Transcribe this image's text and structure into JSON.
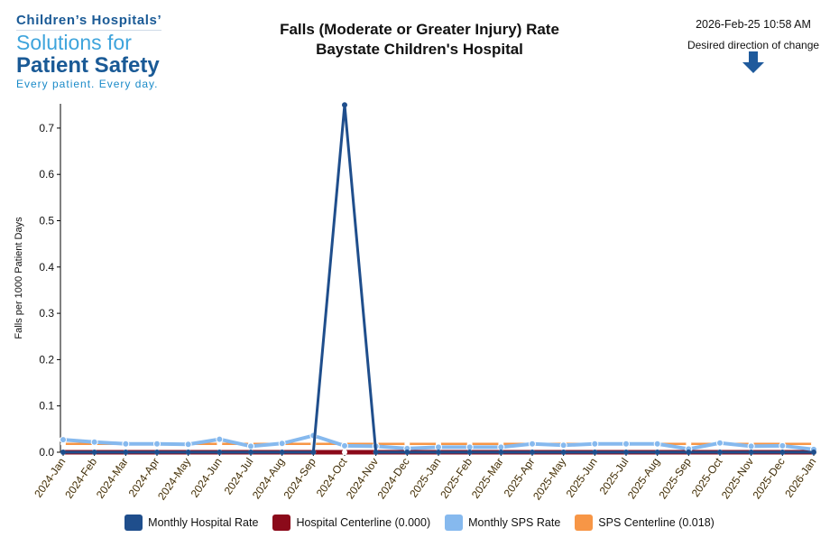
{
  "logo": {
    "line1": "Children’s Hospitals’",
    "line2": "Solutions for",
    "line3": "Patient Safety",
    "line4": "Every patient. Every day."
  },
  "header": {
    "timestamp": "2026-Feb-25 10:58 AM",
    "direction_label": "Desired direction of change",
    "direction_icon": "down-arrow-icon"
  },
  "chart_data": {
    "type": "line",
    "title": "Falls (Moderate or Greater Injury) Rate",
    "subtitle": "Baystate Children's Hospital",
    "xlabel": "",
    "ylabel": "Falls per 1000 Patient Days",
    "ylim": [
      0,
      0.75
    ],
    "yticks": [
      "0.0",
      "0.1",
      "0.2",
      "0.3",
      "0.4",
      "0.5",
      "0.6",
      "0.7"
    ],
    "categories": [
      "2024-Jan",
      "2024-Feb",
      "2024-Mar",
      "2024-Apr",
      "2024-May",
      "2024-Jun",
      "2024-Jul",
      "2024-Aug",
      "2024-Sep",
      "2024-Oct",
      "2024-Nov",
      "2024-Dec",
      "2025-Jan",
      "2025-Feb",
      "2025-Mar",
      "2025-Apr",
      "2025-May",
      "2025-Jun",
      "2025-Jul",
      "2025-Aug",
      "2025-Sep",
      "2025-Oct",
      "2025-Nov",
      "2025-Dec",
      "2026-Jan"
    ],
    "series": [
      {
        "name": "Monthly Hospital Rate",
        "color": "#1f4e8c",
        "values": [
          0,
          0,
          0,
          0,
          0,
          0,
          0,
          0,
          0,
          0.75,
          0,
          0,
          0,
          0,
          0,
          0,
          0,
          0,
          0,
          0,
          0,
          0,
          0,
          0,
          0
        ]
      },
      {
        "name": "Hospital Centerline (0.000)",
        "color": "#8b0a1a",
        "values": [
          0,
          0,
          0,
          0,
          0,
          0,
          0,
          0,
          0,
          0,
          0,
          0,
          0,
          0,
          0,
          0,
          0,
          0,
          0,
          0,
          0,
          0,
          0,
          0,
          0
        ]
      },
      {
        "name": "Monthly SPS Rate",
        "color": "#86b9ee",
        "values": [
          0.027,
          0.022,
          0.018,
          0.018,
          0.017,
          0.028,
          0.013,
          0.019,
          0.036,
          0.014,
          0.013,
          0.008,
          0.011,
          0.011,
          0.011,
          0.018,
          0.015,
          0.018,
          0.018,
          0.018,
          0.007,
          0.02,
          0.013,
          0.014,
          0.006
        ]
      },
      {
        "name": "SPS Centerline (0.018)",
        "color": "#f79646",
        "values": [
          0.018,
          0.018,
          0.018,
          0.018,
          0.018,
          0.018,
          0.018,
          0.018,
          0.018,
          0.018,
          0.018,
          0.018,
          0.018,
          0.018,
          0.018,
          0.018,
          0.018,
          0.018,
          0.018,
          0.018,
          0.018,
          0.018,
          0.018,
          0.018,
          0.018
        ]
      }
    ],
    "legend_position": "bottom",
    "grid": false
  }
}
